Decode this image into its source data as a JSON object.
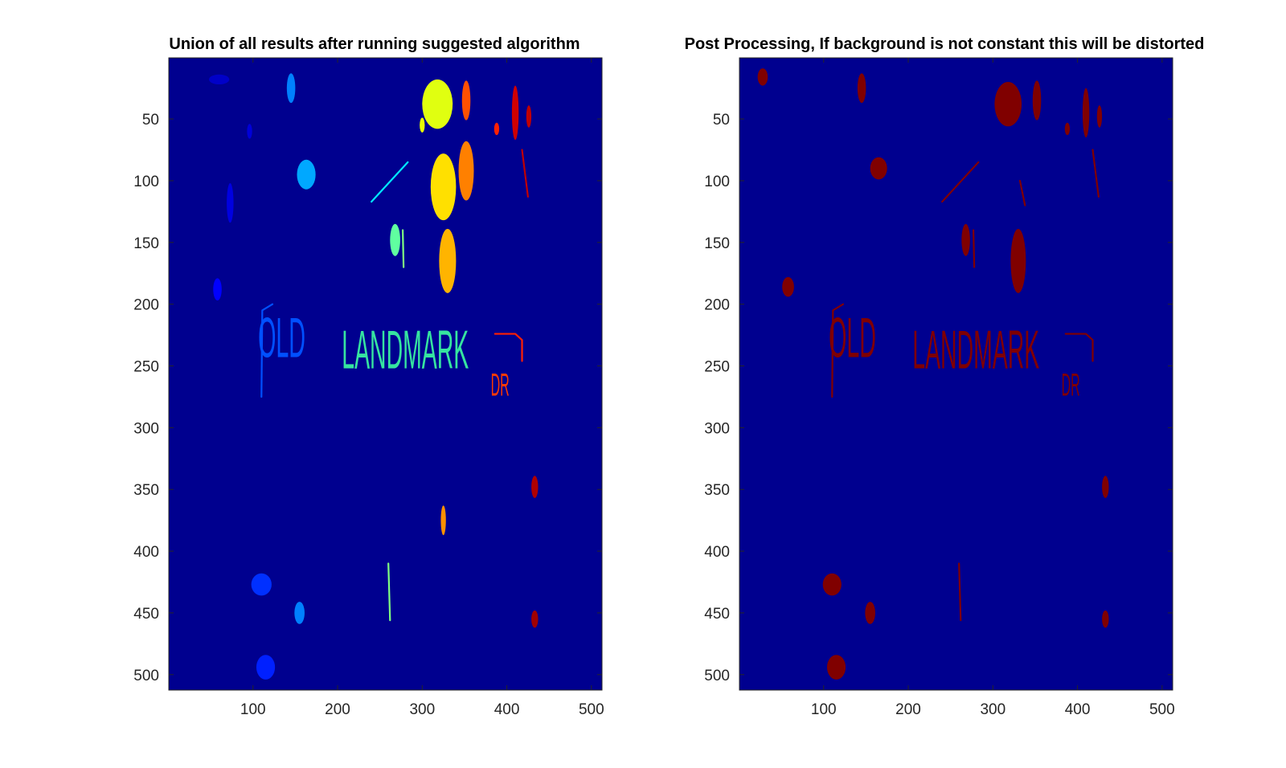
{
  "chart_data": [
    {
      "type": "heatmap",
      "title": "Union of all results after running suggested algorithm",
      "xlabel": "",
      "ylabel": "",
      "xlim": [
        0.5,
        512.5
      ],
      "ylim": [
        0.5,
        512.5
      ],
      "y_reversed": true,
      "x_ticks": [
        100,
        200,
        300,
        400,
        500
      ],
      "y_ticks": [
        50,
        100,
        150,
        200,
        250,
        300,
        350,
        400,
        450,
        500
      ],
      "colormap": "jet",
      "background_color": "#00008f",
      "grid": false,
      "image_text": {
        "line1_words": [
          {
            "text": "OLD",
            "x": 106,
            "y": 243,
            "w": 56,
            "h": 46,
            "color": "#0050ff"
          },
          {
            "text": "LANDMARK",
            "x": 205,
            "y": 252,
            "w": 150,
            "h": 44,
            "color": "#36e4a0"
          },
          {
            "text": "DR",
            "x": 381,
            "y": 274,
            "w": 22,
            "h": 26,
            "color": "#ff3a00"
          }
        ]
      },
      "blobs": [
        {
          "x": 60,
          "y": 18,
          "rx": 12,
          "ry": 4,
          "color": "#0000c8"
        },
        {
          "x": 145,
          "y": 25,
          "rx": 5,
          "ry": 12,
          "color": "#0080ff"
        },
        {
          "x": 96,
          "y": 60,
          "rx": 3,
          "ry": 6,
          "color": "#0000d8"
        },
        {
          "x": 163,
          "y": 95,
          "rx": 11,
          "ry": 12,
          "color": "#00a8ff"
        },
        {
          "x": 73,
          "y": 118,
          "rx": 4,
          "ry": 16,
          "color": "#0000e0"
        },
        {
          "x": 58,
          "y": 188,
          "rx": 5,
          "ry": 9,
          "color": "#0000ff"
        },
        {
          "x": 268,
          "y": 148,
          "rx": 6,
          "ry": 13,
          "color": "#60ffa0"
        },
        {
          "x": 318,
          "y": 38,
          "rx": 18,
          "ry": 20,
          "color": "#e0ff10"
        },
        {
          "x": 300,
          "y": 55,
          "rx": 3,
          "ry": 6,
          "color": "#e8ff00"
        },
        {
          "x": 352,
          "y": 35,
          "rx": 5,
          "ry": 16,
          "color": "#ff5000"
        },
        {
          "x": 325,
          "y": 105,
          "rx": 15,
          "ry": 27,
          "color": "#ffe000"
        },
        {
          "x": 352,
          "y": 92,
          "rx": 9,
          "ry": 24,
          "color": "#ff8000"
        },
        {
          "x": 330,
          "y": 165,
          "rx": 10,
          "ry": 26,
          "color": "#ffb400"
        },
        {
          "x": 388,
          "y": 58,
          "rx": 3,
          "ry": 5,
          "color": "#ff2000"
        },
        {
          "x": 410,
          "y": 45,
          "rx": 4,
          "ry": 22,
          "color": "#d00000"
        },
        {
          "x": 426,
          "y": 48,
          "rx": 3,
          "ry": 9,
          "color": "#c00000"
        },
        {
          "x": 433,
          "y": 348,
          "rx": 4,
          "ry": 9,
          "color": "#b00000"
        },
        {
          "x": 325,
          "y": 375,
          "rx": 3,
          "ry": 12,
          "color": "#ff9000"
        },
        {
          "x": 110,
          "y": 427,
          "rx": 12,
          "ry": 9,
          "color": "#0030ff"
        },
        {
          "x": 155,
          "y": 450,
          "rx": 6,
          "ry": 9,
          "color": "#0080ff"
        },
        {
          "x": 115,
          "y": 494,
          "rx": 11,
          "ry": 10,
          "color": "#0020ff"
        },
        {
          "x": 433,
          "y": 455,
          "rx": 4,
          "ry": 7,
          "color": "#a00000"
        }
      ],
      "strokes": [
        {
          "points": [
            [
              240,
              117
            ],
            [
              283,
              85
            ]
          ],
          "color": "#00e8ff"
        },
        {
          "points": [
            [
              277,
              140
            ],
            [
              278,
              170
            ]
          ],
          "color": "#80ff80"
        },
        {
          "points": [
            [
              260,
              410
            ],
            [
              262,
              456
            ]
          ],
          "color": "#80ff80"
        },
        {
          "points": [
            [
              110,
              275
            ],
            [
              111,
              205
            ],
            [
              123,
              200
            ]
          ],
          "color": "#0050ff"
        },
        {
          "points": [
            [
              386,
              224
            ],
            [
              410,
              224
            ],
            [
              418,
              229
            ],
            [
              418,
              246
            ]
          ],
          "color": "#ff2000"
        },
        {
          "points": [
            [
              418,
              75
            ],
            [
              425,
              113
            ]
          ],
          "color": "#c00000"
        }
      ]
    },
    {
      "type": "heatmap",
      "title": "Post Processing, If background is not constant this will be distorted",
      "xlabel": "",
      "ylabel": "",
      "xlim": [
        0.5,
        512.5
      ],
      "ylim": [
        0.5,
        512.5
      ],
      "y_reversed": true,
      "x_ticks": [
        100,
        200,
        300,
        400,
        500
      ],
      "y_ticks": [
        50,
        100,
        150,
        200,
        250,
        300,
        350,
        400,
        450,
        500
      ],
      "colormap": "binary (blue / dark red)",
      "background_color": "#00008f",
      "foreground_color": "#800000",
      "grid": false,
      "image_text": {
        "line1_words": [
          {
            "text": "OLD",
            "x": 106,
            "y": 243,
            "w": 56,
            "h": 46,
            "color": "#800000"
          },
          {
            "text": "LANDMARK",
            "x": 205,
            "y": 252,
            "w": 150,
            "h": 44,
            "color": "#800000"
          },
          {
            "text": "DR",
            "x": 381,
            "y": 274,
            "w": 22,
            "h": 26,
            "color": "#800000"
          }
        ]
      },
      "blobs": [
        {
          "x": 28,
          "y": 16,
          "rx": 6,
          "ry": 7,
          "color": "#800000"
        },
        {
          "x": 145,
          "y": 25,
          "rx": 5,
          "ry": 12,
          "color": "#800000"
        },
        {
          "x": 165,
          "y": 90,
          "rx": 10,
          "ry": 9,
          "color": "#800000"
        },
        {
          "x": 58,
          "y": 186,
          "rx": 7,
          "ry": 8,
          "color": "#800000"
        },
        {
          "x": 268,
          "y": 148,
          "rx": 5,
          "ry": 13,
          "color": "#800000"
        },
        {
          "x": 318,
          "y": 38,
          "rx": 16,
          "ry": 18,
          "color": "#800000"
        },
        {
          "x": 352,
          "y": 35,
          "rx": 5,
          "ry": 16,
          "color": "#800000"
        },
        {
          "x": 388,
          "y": 58,
          "rx": 3,
          "ry": 5,
          "color": "#800000"
        },
        {
          "x": 410,
          "y": 45,
          "rx": 4,
          "ry": 20,
          "color": "#800000"
        },
        {
          "x": 426,
          "y": 48,
          "rx": 3,
          "ry": 9,
          "color": "#800000"
        },
        {
          "x": 330,
          "y": 165,
          "rx": 9,
          "ry": 26,
          "color": "#800000"
        },
        {
          "x": 433,
          "y": 348,
          "rx": 4,
          "ry": 9,
          "color": "#800000"
        },
        {
          "x": 110,
          "y": 427,
          "rx": 11,
          "ry": 9,
          "color": "#800000"
        },
        {
          "x": 155,
          "y": 450,
          "rx": 6,
          "ry": 9,
          "color": "#800000"
        },
        {
          "x": 115,
          "y": 494,
          "rx": 11,
          "ry": 10,
          "color": "#800000"
        },
        {
          "x": 433,
          "y": 455,
          "rx": 4,
          "ry": 7,
          "color": "#800000"
        }
      ],
      "strokes": [
        {
          "points": [
            [
              240,
              117
            ],
            [
              283,
              85
            ]
          ],
          "color": "#800000"
        },
        {
          "points": [
            [
              277,
              140
            ],
            [
              278,
              170
            ]
          ],
          "color": "#800000"
        },
        {
          "points": [
            [
              260,
              410
            ],
            [
              262,
              456
            ]
          ],
          "color": "#800000"
        },
        {
          "points": [
            [
              110,
              275
            ],
            [
              111,
              205
            ],
            [
              123,
              200
            ]
          ],
          "color": "#800000"
        },
        {
          "points": [
            [
              386,
              224
            ],
            [
              410,
              224
            ],
            [
              418,
              229
            ],
            [
              418,
              246
            ]
          ],
          "color": "#800000"
        },
        {
          "points": [
            [
              418,
              75
            ],
            [
              425,
              113
            ]
          ],
          "color": "#800000"
        },
        {
          "points": [
            [
              332,
              100
            ],
            [
              338,
              120
            ]
          ],
          "color": "#800000"
        }
      ]
    }
  ]
}
